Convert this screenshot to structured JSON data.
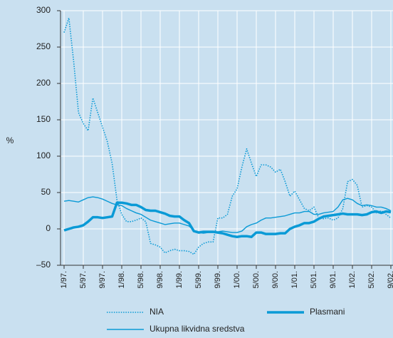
{
  "chart_data": {
    "type": "line",
    "ylabel": "%",
    "categories": [
      "1/97.",
      null,
      null,
      null,
      "5/97.",
      null,
      null,
      null,
      "9/97.",
      null,
      null,
      null,
      "1/98.",
      null,
      null,
      null,
      "5/98.",
      null,
      null,
      null,
      "9/98.",
      null,
      null,
      null,
      "1/99.",
      null,
      null,
      null,
      "5/99.",
      null,
      null,
      null,
      "9/99.",
      null,
      null,
      null,
      "1/00.",
      null,
      null,
      null,
      "5/00.",
      null,
      null,
      null,
      "9/00.",
      null,
      null,
      null,
      "1/01.",
      null,
      null,
      null,
      "5/01.",
      null,
      null,
      null,
      "9/01.",
      null,
      null,
      null,
      "1/02.",
      null,
      null,
      null,
      "5/02.",
      null,
      null,
      null,
      "9/02."
    ],
    "series": [
      {
        "name": "NIA",
        "color": "#0a9ad6",
        "style": "dotted",
        "values": [
          270,
          290,
          230,
          160,
          145,
          135,
          180,
          160,
          140,
          120,
          90,
          40,
          20,
          10,
          10,
          12,
          15,
          10,
          -20,
          -22,
          -25,
          -33,
          -30,
          -28,
          -30,
          -30,
          -31,
          -35,
          -25,
          -20,
          -18,
          -18,
          15,
          15,
          20,
          45,
          55,
          85,
          110,
          90,
          72,
          88,
          88,
          85,
          78,
          82,
          65,
          45,
          52,
          40,
          28,
          25,
          30,
          15,
          14,
          15,
          12,
          15,
          28,
          65,
          68,
          60,
          30,
          32,
          30,
          22,
          25,
          20,
          15
        ]
      },
      {
        "name": "Plasmani",
        "color": "#0a9ad6",
        "style": "thick",
        "values": [
          -2,
          0,
          2,
          3,
          5,
          10,
          16,
          16,
          15,
          16,
          17,
          36,
          36,
          35,
          33,
          33,
          30,
          26,
          25,
          25,
          23,
          21,
          18,
          17,
          17,
          12,
          8,
          -3,
          -5,
          -4,
          -4,
          -4,
          -5,
          -6,
          -8,
          -10,
          -11,
          -10,
          -10,
          -11,
          -5,
          -5,
          -7,
          -7,
          -7,
          -6,
          -6,
          0,
          3,
          5,
          8,
          8,
          10,
          14,
          17,
          18,
          19,
          20,
          21,
          20,
          20,
          20,
          19,
          20,
          23,
          24,
          22,
          24,
          23
        ]
      },
      {
        "name": "Ukupna likvidna sredstva",
        "color": "#0a9ad6",
        "style": "thin",
        "values": [
          38,
          39,
          38,
          37,
          40,
          43,
          44,
          43,
          41,
          38,
          35,
          33,
          32,
          28,
          25,
          22,
          20,
          16,
          12,
          10,
          8,
          6,
          7,
          8,
          8,
          6,
          4,
          -2,
          -5,
          -6,
          -5,
          -5,
          -4,
          -3,
          -4,
          -5,
          -5,
          -3,
          3,
          6,
          8,
          12,
          15,
          15,
          16,
          17,
          18,
          20,
          22,
          22,
          24,
          24,
          20,
          20,
          22,
          23,
          24,
          30,
          40,
          42,
          40,
          35,
          32,
          33,
          32,
          30,
          30,
          28,
          25
        ]
      }
    ],
    "ylim": [
      -50,
      300
    ],
    "yticks": [
      {
        "value": -50,
        "label": "–50"
      },
      0,
      50,
      100,
      150,
      200,
      250,
      300
    ],
    "grid": true
  }
}
